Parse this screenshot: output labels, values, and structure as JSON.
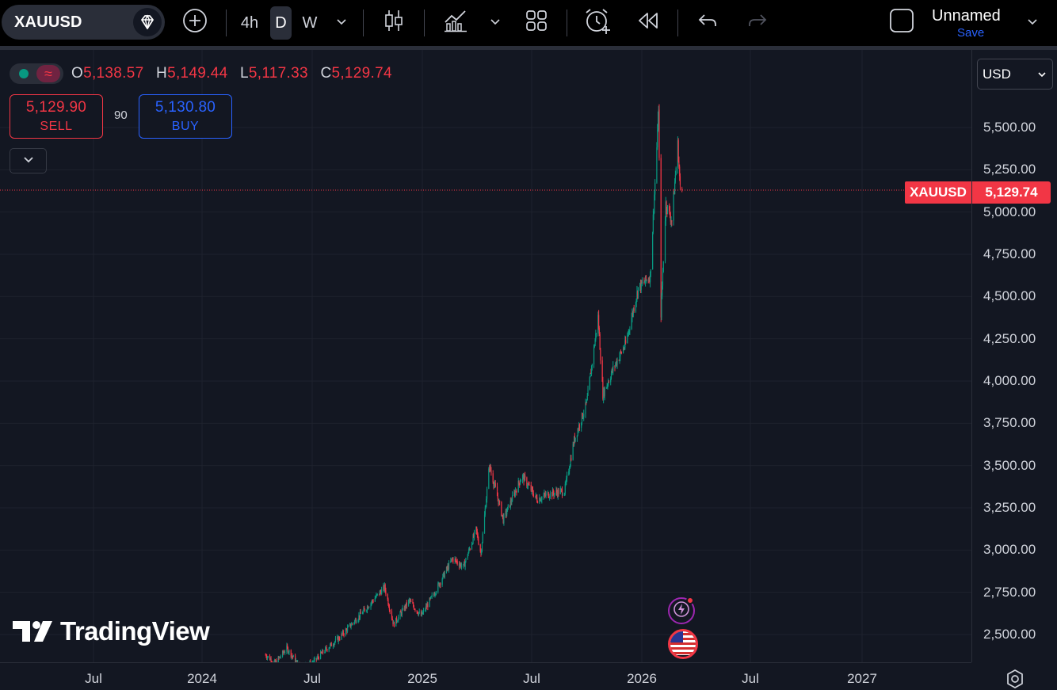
{
  "toolbar": {
    "symbol": "XAUUSD",
    "timeframes": [
      "4h",
      "D",
      "W"
    ],
    "active_timeframe": "D",
    "layout_name": "Unnamed",
    "save_label": "Save"
  },
  "legend": {
    "open_key": "O",
    "open": "5,138.57",
    "high_key": "H",
    "high": "5,149.44",
    "low_key": "L",
    "low": "5,117.33",
    "close_key": "C",
    "close": "5,129.74",
    "status_wave": "≈"
  },
  "trade": {
    "sell_price": "5,129.90",
    "sell_label": "SELL",
    "spread": "90",
    "buy_price": "5,130.80",
    "buy_label": "BUY"
  },
  "price_axis": {
    "currency": "USD",
    "labels": [
      "5,500.00",
      "5,250.00",
      "5,000.00",
      "4,750.00",
      "4,500.00",
      "4,250.00",
      "4,000.00",
      "3,750.00",
      "3,500.00",
      "3,250.00",
      "3,000.00",
      "2,750.00",
      "2,500.00"
    ],
    "last_symbol": "XAUUSD",
    "last_price": "5,129.74"
  },
  "time_axis": {
    "labels": [
      "Jul",
      "2024",
      "Jul",
      "2025",
      "Jul",
      "2026",
      "Jul",
      "2027"
    ]
  },
  "branding": {
    "logo_text": "TradingView"
  },
  "colors": {
    "background": "#131722",
    "up": "#089981",
    "down": "#f23645",
    "accent": "#2962ff",
    "grid": "#1e222d"
  },
  "chart_data": {
    "type": "candlestick",
    "symbol": "XAUUSD",
    "interval": "D",
    "ylim": [
      2420,
      5600
    ],
    "y_ticks": [
      2500,
      2750,
      3000,
      3250,
      3500,
      3750,
      4000,
      4250,
      4500,
      4750,
      5000,
      5250,
      5500
    ],
    "x_ticks": [
      "Jul",
      "2024",
      "Jul",
      "2025",
      "Jul",
      "2026",
      "Jul",
      "2027"
    ],
    "last_close": 5129.74,
    "price_path": [
      [
        "2024-04-15",
        2380
      ],
      [
        "2024-05-01",
        2330
      ],
      [
        "2024-05-20",
        2420
      ],
      [
        "2024-06-10",
        2310
      ],
      [
        "2024-07-01",
        2330
      ],
      [
        "2024-07-20",
        2400
      ],
      [
        "2024-08-15",
        2480
      ],
      [
        "2024-09-20",
        2620
      ],
      [
        "2024-10-30",
        2780
      ],
      [
        "2024-11-14",
        2560
      ],
      [
        "2024-12-10",
        2700
      ],
      [
        "2024-12-30",
        2610
      ],
      [
        "2025-01-20",
        2740
      ],
      [
        "2025-02-20",
        2950
      ],
      [
        "2025-03-10",
        2900
      ],
      [
        "2025-03-31",
        3120
      ],
      [
        "2025-04-08",
        2980
      ],
      [
        "2025-04-22",
        3500
      ],
      [
        "2025-05-15",
        3180
      ],
      [
        "2025-06-15",
        3440
      ],
      [
        "2025-07-10",
        3300
      ],
      [
        "2025-07-28",
        3330
      ],
      [
        "2025-08-25",
        3350
      ],
      [
        "2025-09-10",
        3650
      ],
      [
        "2025-10-01",
        3870
      ],
      [
        "2025-10-20",
        4380
      ],
      [
        "2025-10-28",
        3920
      ],
      [
        "2025-11-15",
        4080
      ],
      [
        "2025-12-05",
        4220
      ],
      [
        "2025-12-26",
        4550
      ],
      [
        "2026-01-15",
        4620
      ],
      [
        "2026-01-29",
        5590
      ],
      [
        "2026-02-02",
        4400
      ],
      [
        "2026-02-10",
        5050
      ],
      [
        "2026-02-20",
        4950
      ],
      [
        "2026-03-02",
        5400
      ],
      [
        "2026-03-06",
        5140
      ],
      [
        "2026-03-09",
        5129.74
      ]
    ]
  },
  "events": [
    {
      "icon": "flash-icon",
      "has_notification": true
    },
    {
      "icon": "us-flag-icon"
    }
  ]
}
